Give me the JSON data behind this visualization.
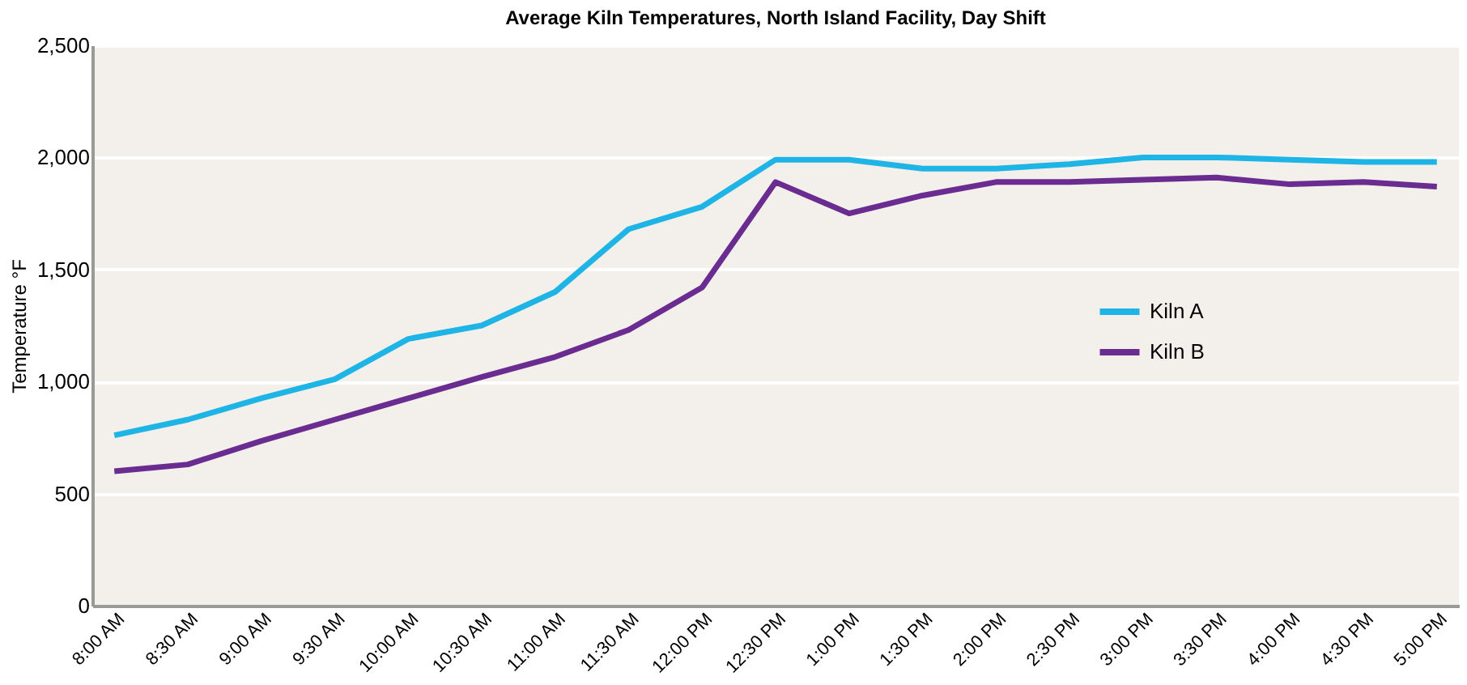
{
  "chart_data": {
    "type": "line",
    "title": "Average Kiln Temperatures, North Island Facility, Day Shift",
    "ylabel": "Temperature °F",
    "categories": [
      "8:00 AM",
      "8:30 AM",
      "9:00 AM",
      "9:30 AM",
      "10:00 AM",
      "10:30 AM",
      "11:00 AM",
      "11:30 AM",
      "12:00 PM",
      "12:30 PM",
      "1:00 PM",
      "1:30 PM",
      "2:00 PM",
      "2:30 PM",
      "3:00 PM",
      "3:30 PM",
      "4:00 PM",
      "4:30 PM",
      "5:00 PM"
    ],
    "series": [
      {
        "name": "Kiln A",
        "color": "#1eb4e6",
        "values": [
          760,
          830,
          925,
          1010,
          1190,
          1250,
          1400,
          1680,
          1780,
          1990,
          1990,
          1950,
          1950,
          1970,
          2000,
          2000,
          1990,
          1980,
          1980
        ]
      },
      {
        "name": "Kiln B",
        "color": "#6a2c91",
        "values": [
          600,
          630,
          735,
          830,
          925,
          1020,
          1110,
          1230,
          1420,
          1890,
          1750,
          1830,
          1890,
          1890,
          1900,
          1910,
          1880,
          1890,
          1870
        ]
      }
    ],
    "ylim": [
      0,
      2500
    ],
    "yticks": [
      0,
      500,
      {
        "value": 1000,
        "label": "1,000"
      },
      {
        "value": 1500,
        "label": "1,500"
      },
      {
        "value": 2000,
        "label": "2,000"
      },
      {
        "value": 2500,
        "label": "2,500"
      }
    ],
    "grid": "y",
    "legend": "right",
    "line_style": "solid",
    "marker": "none"
  }
}
